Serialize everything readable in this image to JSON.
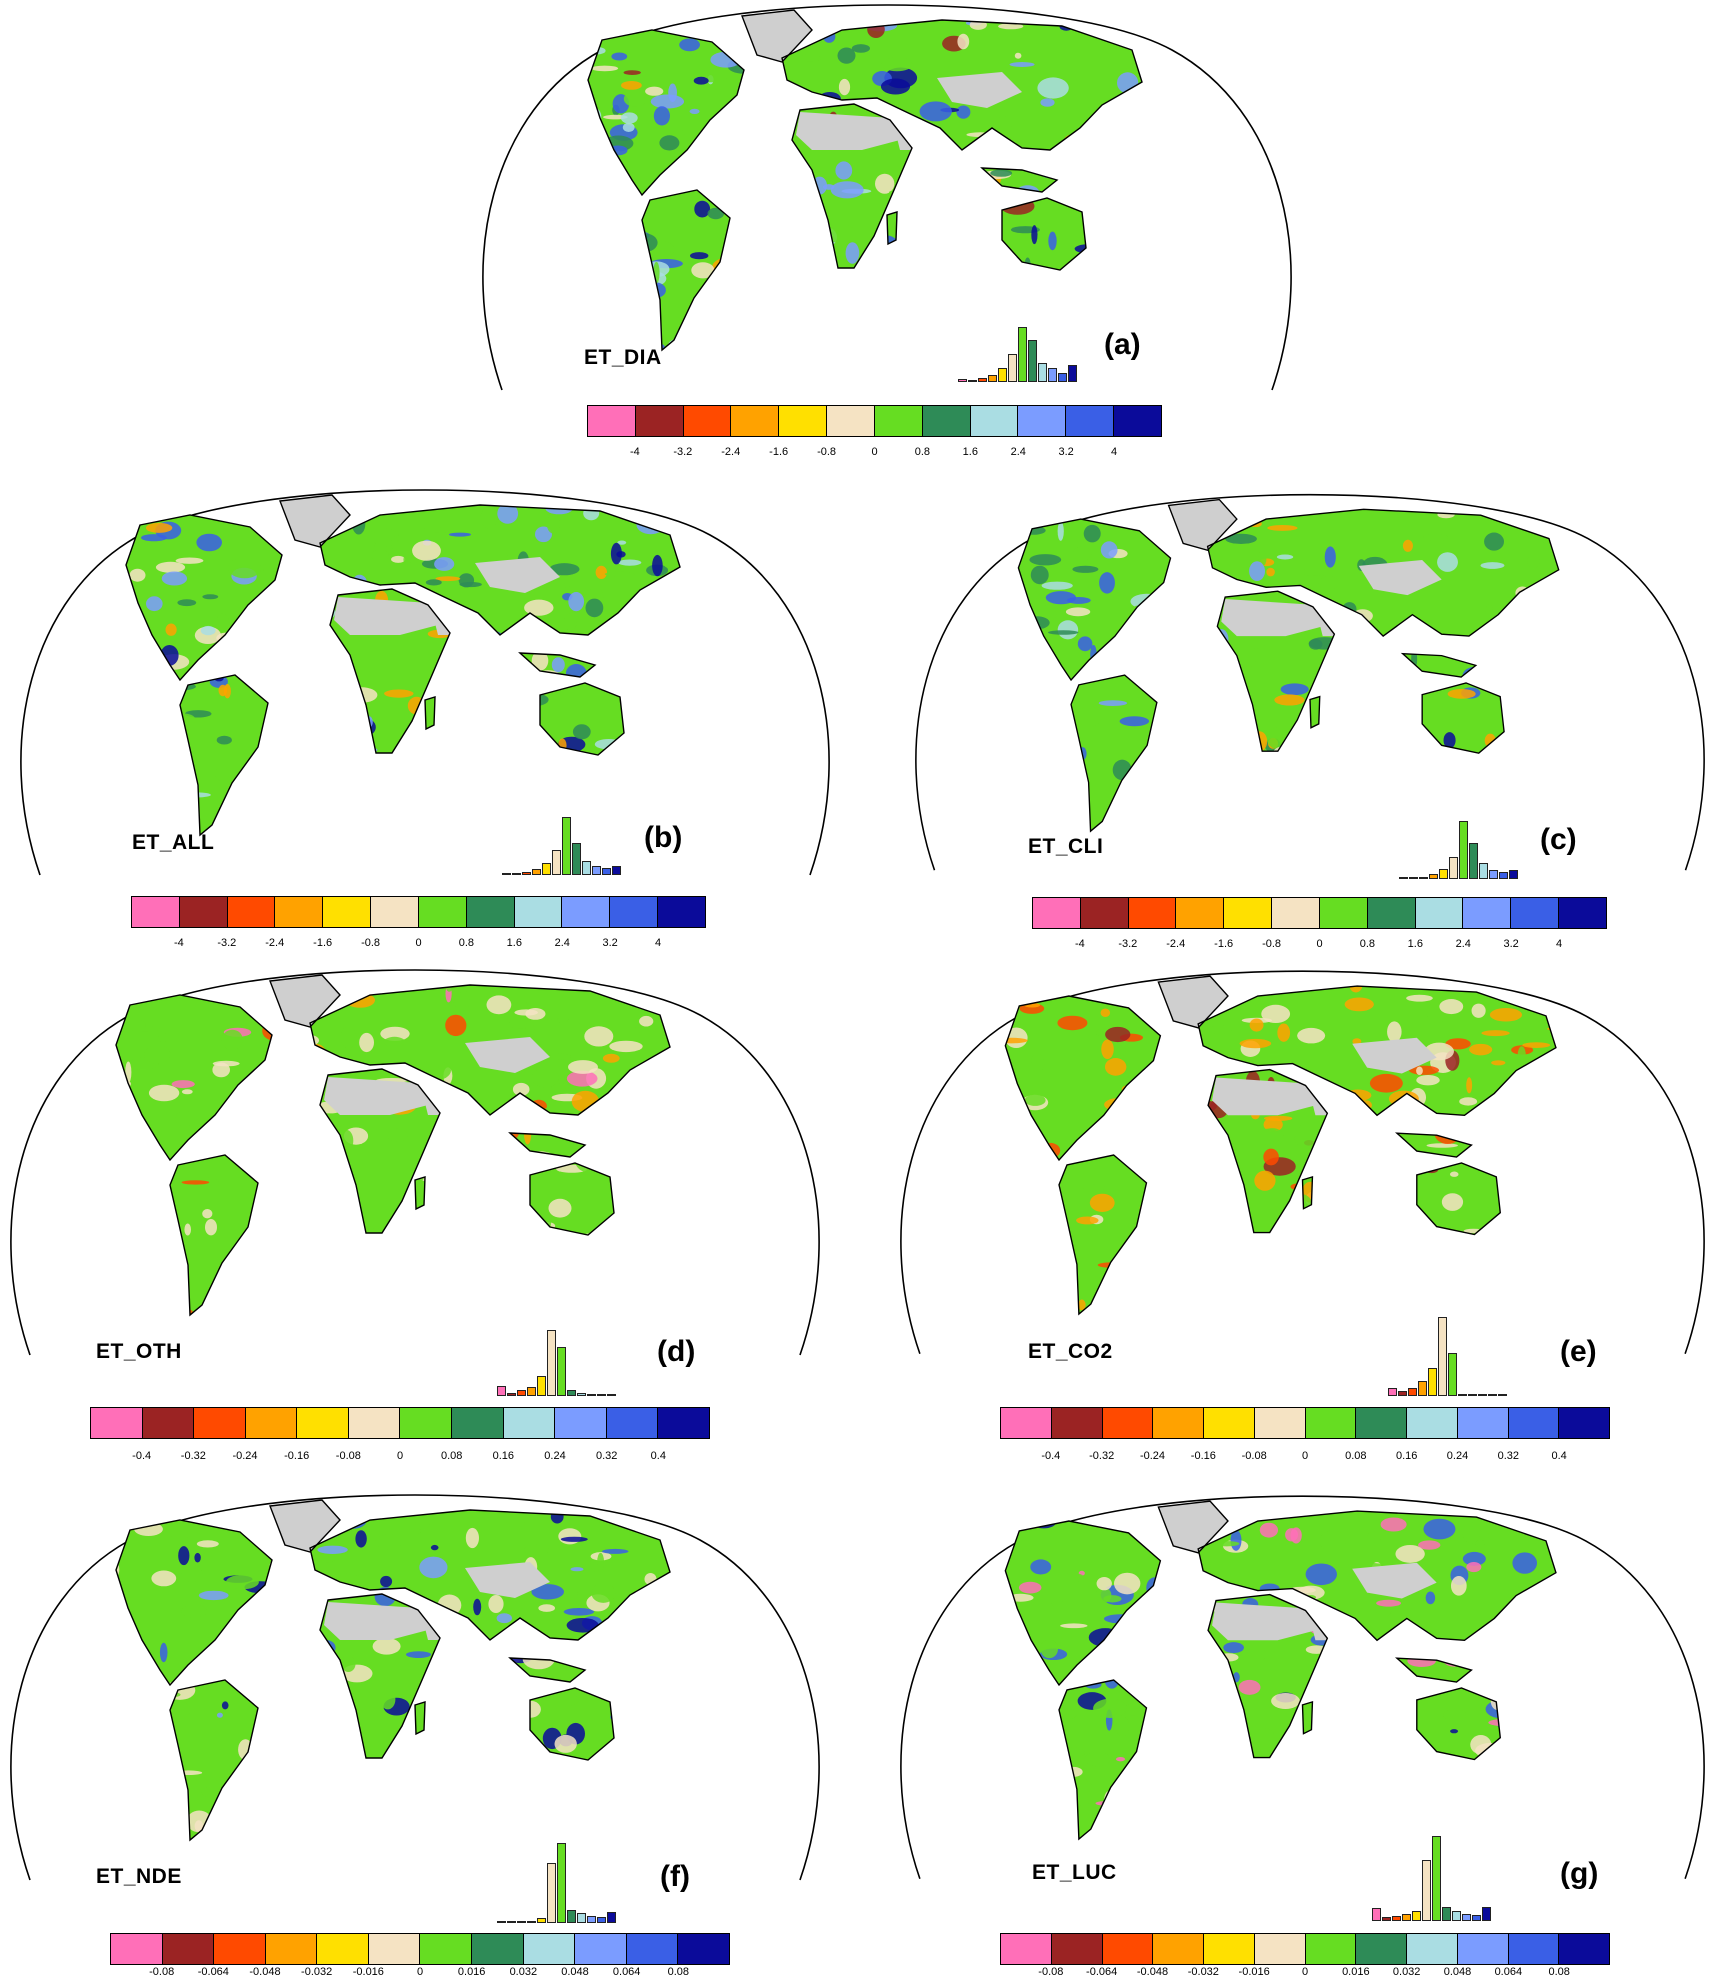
{
  "colors": {
    "classes": [
      "#ff6fb8",
      "#9b2323",
      "#ff4a00",
      "#ffa200",
      "#ffe000",
      "#f5e3c3",
      "#66dd22",
      "#2e8b57",
      "#aadde3",
      "#7b9cff",
      "#3a5fe6",
      "#0b0b9a"
    ],
    "land_neutral": "#cfcfcf",
    "outline": "#000000"
  },
  "scales": {
    "large": [
      "-4",
      "-3.2",
      "-2.4",
      "-1.6",
      "-0.8",
      "0",
      "0.8",
      "1.6",
      "2.4",
      "3.2",
      "4"
    ],
    "medium": [
      "-0.4",
      "-0.32",
      "-0.24",
      "-0.16",
      "-0.08",
      "0",
      "0.08",
      "0.16",
      "0.24",
      "0.32",
      "0.4"
    ],
    "small": [
      "-0.08",
      "-0.064",
      "-0.048",
      "-0.032",
      "-0.016",
      "0",
      "0.016",
      "0.032",
      "0.048",
      "0.064",
      "0.08"
    ]
  },
  "panels": [
    {
      "id": "a",
      "label": "ET_DIA",
      "letter": "(a)",
      "scale": "large",
      "hist": [
        0.03,
        0.02,
        0.04,
        0.07,
        0.14,
        0.28,
        0.55,
        0.42,
        0.19,
        0.14,
        0.09,
        0.17
      ],
      "palette": [
        5,
        6,
        7,
        8,
        9,
        10,
        11,
        6,
        7,
        3,
        1
      ]
    },
    {
      "id": "b",
      "label": "ET_ALL",
      "letter": "(b)",
      "scale": "large",
      "hist": [
        0.01,
        0.01,
        0.03,
        0.06,
        0.12,
        0.25,
        0.58,
        0.32,
        0.14,
        0.09,
        0.07,
        0.09
      ],
      "palette": [
        6,
        7,
        8,
        9,
        10,
        11,
        6,
        5,
        3,
        6,
        7
      ]
    },
    {
      "id": "c",
      "label": "ET_CLI",
      "letter": "(c)",
      "scale": "large",
      "hist": [
        0.01,
        0.01,
        0.02,
        0.05,
        0.1,
        0.22,
        0.58,
        0.36,
        0.16,
        0.09,
        0.07,
        0.09
      ],
      "palette": [
        6,
        7,
        8,
        9,
        10,
        6,
        5,
        3,
        6,
        7,
        11
      ]
    },
    {
      "id": "d",
      "label": "ET_OTH",
      "letter": "(d)",
      "scale": "medium",
      "hist": [
        0.1,
        0.03,
        0.06,
        0.09,
        0.2,
        0.66,
        0.49,
        0.06,
        0.03,
        0.02,
        0.01,
        0.01
      ],
      "palette": [
        6,
        5,
        6,
        5,
        3,
        6,
        0,
        6,
        2,
        5,
        6
      ]
    },
    {
      "id": "e",
      "label": "ET_CO2",
      "letter": "(e)",
      "scale": "medium",
      "hist": [
        0.08,
        0.05,
        0.08,
        0.15,
        0.28,
        0.79,
        0.43,
        0.01,
        0.01,
        0.01,
        0.01,
        0.01
      ],
      "palette": [
        3,
        5,
        2,
        6,
        3,
        5,
        1,
        6,
        3,
        5,
        2
      ]
    },
    {
      "id": "f",
      "label": "ET_NDE",
      "letter": "(f)",
      "scale": "small",
      "hist": [
        0.01,
        0.01,
        0.01,
        0.02,
        0.05,
        0.6,
        0.8,
        0.13,
        0.1,
        0.07,
        0.06,
        0.11
      ],
      "palette": [
        6,
        5,
        6,
        11,
        10,
        6,
        5,
        6,
        11,
        6,
        9
      ]
    },
    {
      "id": "g",
      "label": "ET_LUC",
      "letter": "(g)",
      "scale": "small",
      "hist": [
        0.13,
        0.04,
        0.05,
        0.07,
        0.1,
        0.61,
        0.85,
        0.14,
        0.1,
        0.07,
        0.06,
        0.14
      ],
      "palette": [
        6,
        0,
        10,
        6,
        5,
        11,
        0,
        6,
        10,
        5,
        6
      ]
    }
  ]
}
